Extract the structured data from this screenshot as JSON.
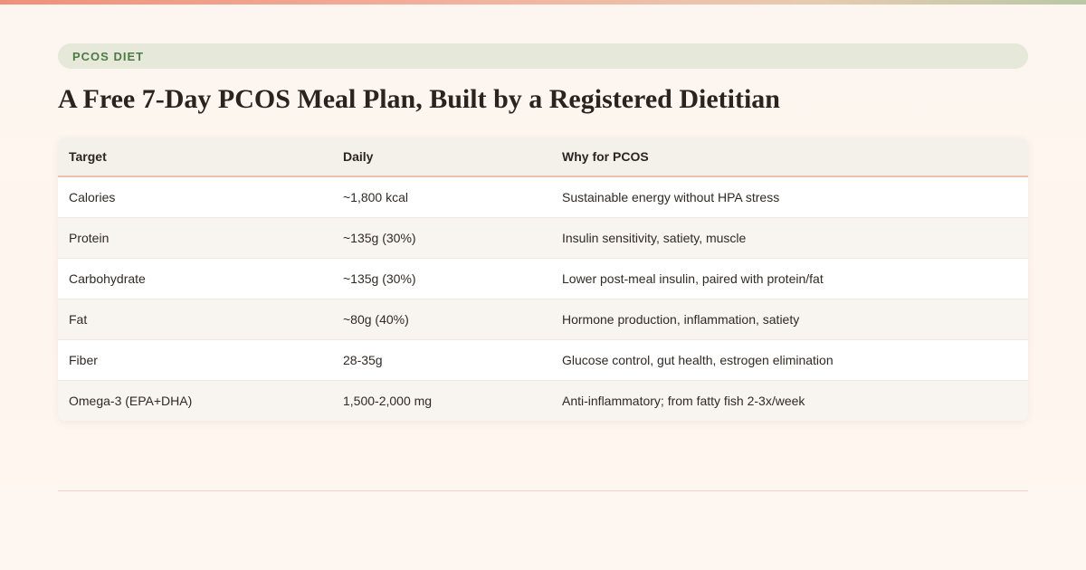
{
  "tag": {
    "label": "PCOS Diet"
  },
  "title": "A Free 7-Day PCOS Meal Plan, Built by a Registered Dietitian",
  "table": {
    "headers": [
      "Target",
      "Daily",
      "Why for PCOS"
    ],
    "rows": [
      [
        "Calories",
        "~1,800 kcal",
        "Sustainable energy without HPA stress"
      ],
      [
        "Protein",
        "~135g (30%)",
        "Insulin sensitivity, satiety, muscle"
      ],
      [
        "Carbohydrate",
        "~135g (30%)",
        "Lower post-meal insulin, paired with protein/fat"
      ],
      [
        "Fat",
        "~80g (40%)",
        "Hormone production, inflammation, satiety"
      ],
      [
        "Fiber",
        "28-35g",
        "Glucose control, gut health, estrogen elimination"
      ],
      [
        "Omega-3 (EPA+DHA)",
        "1,500-2,000 mg",
        "Anti-inflammatory; from fatty fish 2-3x/week"
      ]
    ]
  },
  "colors": {
    "accent_green": "#4e7a45",
    "tag_background": "#e6e8da",
    "header_rule": "#ecc0ad",
    "page_background": "#fdf6f0"
  }
}
